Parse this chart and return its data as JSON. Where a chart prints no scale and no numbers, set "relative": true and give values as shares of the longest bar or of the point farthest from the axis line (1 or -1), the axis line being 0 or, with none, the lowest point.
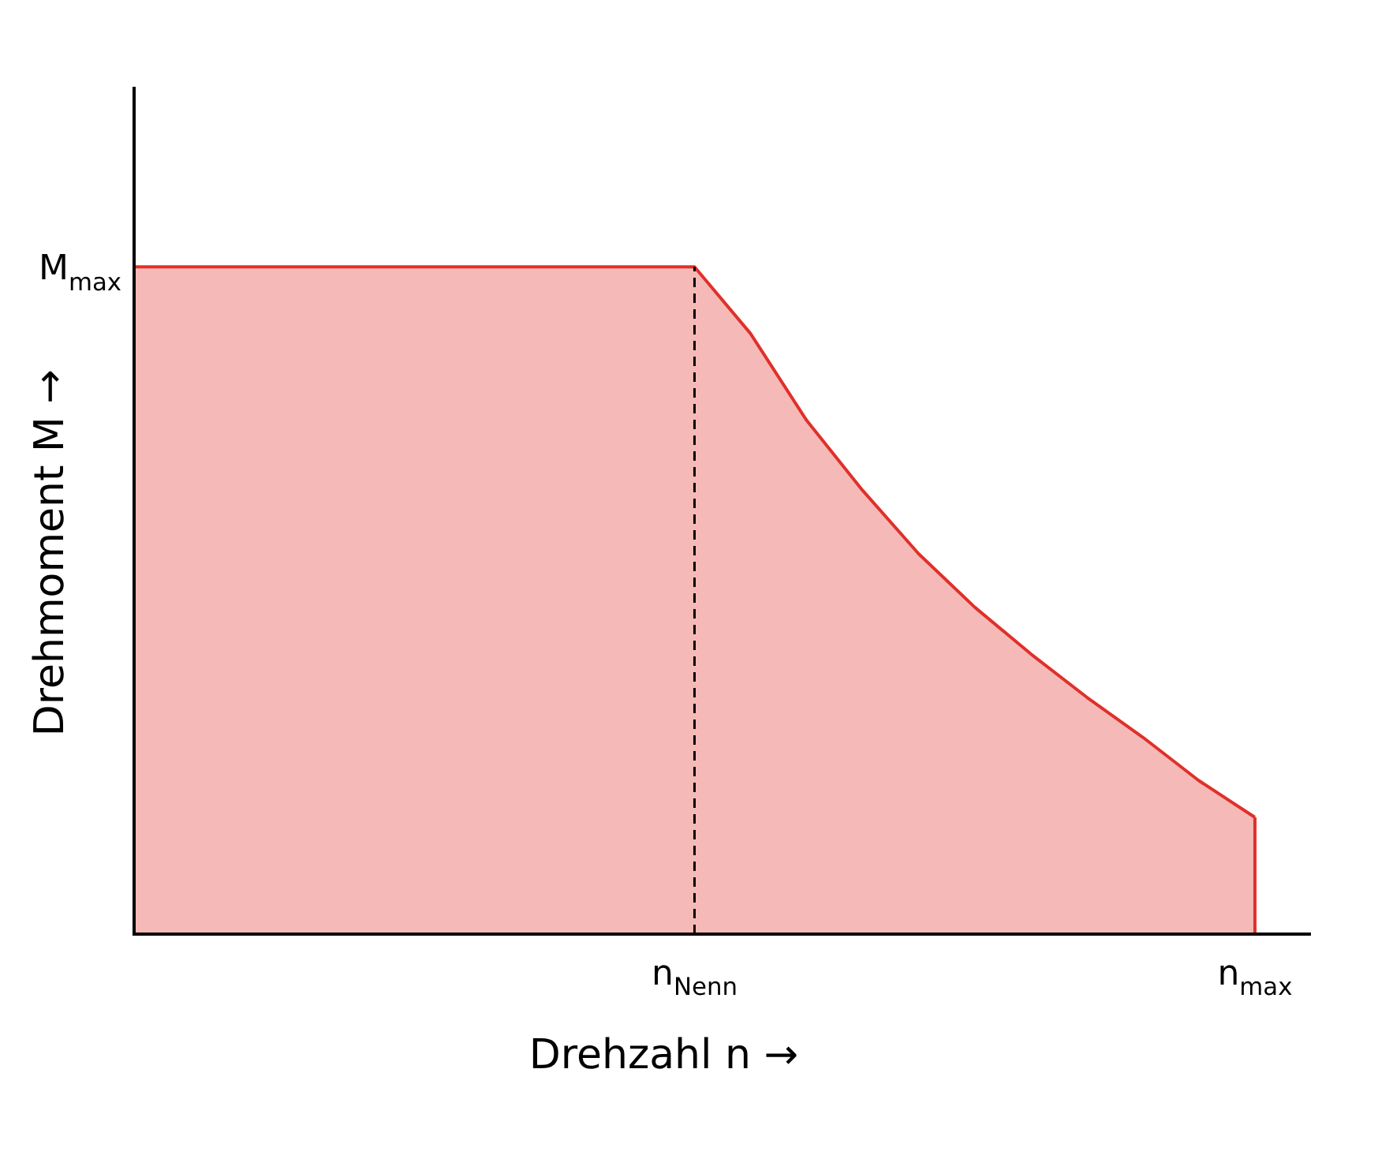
{
  "chart_data": {
    "type": "area",
    "relative": true,
    "xlabel": "Drehzahl n →",
    "ylabel": "Drehmoment M →",
    "categories": [
      null,
      null,
      null,
      null,
      null,
      null,
      null,
      null,
      null,
      null,
      "n$_{Nenn}$",
      null,
      null,
      null,
      null,
      null,
      null,
      null,
      null,
      null,
      "n$_{max}$",
      null
    ],
    "annotations": [
      "M$_{max}$"
    ],
    "series": [
      {
        "color": "#e0302a",
        "values": [
          1,
          1,
          1,
          1,
          1,
          1,
          1,
          1,
          1,
          1,
          1,
          0.9,
          0.77,
          0.665,
          0.57,
          0.49,
          0.42,
          0.355,
          0.295,
          0.23,
          0.175,
          null
        ]
      }
    ],
    "ref_lines": [
      {
        "axis": "x",
        "value": "n$_{Nenn}$",
        "color": "#000000",
        "line_style": "dashed"
      },
      {
        "axis": "x",
        "value": "n$_{max}$",
        "color": "#e0302a"
      }
    ]
  }
}
